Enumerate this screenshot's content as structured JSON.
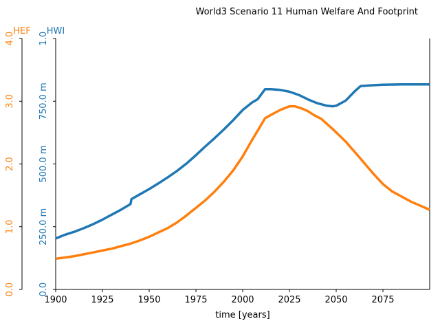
{
  "chart_data": {
    "type": "line",
    "title": "World3 Scenario 11 Human Welfare And Footprint",
    "xlabel": "time [years]",
    "xlim": [
      1900,
      2100
    ],
    "x_ticks": [
      1900,
      1925,
      1950,
      1975,
      2000,
      2025,
      2050,
      2075
    ],
    "x_tick_labels": [
      "1900",
      "1925",
      "1950",
      "1975",
      "2000",
      "2025",
      "2050",
      "2075"
    ],
    "axes": [
      {
        "id": "hef",
        "label": "HEF",
        "color": "#ff7f0e",
        "ylim": [
          0,
          4
        ],
        "ticks": [
          0,
          1,
          2,
          3,
          4
        ],
        "tick_labels": [
          "0.0",
          "1.0",
          "2.0",
          "3.0",
          "4.0"
        ]
      },
      {
        "id": "hwi",
        "label": "HWI",
        "color": "#1f77b4",
        "ylim": [
          0,
          1
        ],
        "ticks": [
          0,
          0.25,
          0.5,
          0.75,
          1
        ],
        "tick_labels": [
          "0.0",
          "250.0 m",
          "500.0 m",
          "750.0 m",
          "1.0"
        ]
      }
    ],
    "series": [
      {
        "name": "HWI",
        "axis": "hwi",
        "color": "#1f77b4",
        "x": [
          1900,
          1905,
          1910,
          1915,
          1920,
          1925,
          1930,
          1935,
          1940,
          1940.5,
          1945,
          1950,
          1955,
          1960,
          1965,
          1970,
          1975,
          1980,
          1985,
          1990,
          1995,
          2000,
          2005,
          2008,
          2012,
          2015,
          2020,
          2025,
          2030,
          2035,
          2040,
          2045,
          2048,
          2050,
          2055,
          2060,
          2063,
          2068,
          2075,
          2085,
          2100
        ],
        "y": [
          0.203,
          0.218,
          0.23,
          0.244,
          0.26,
          0.278,
          0.298,
          0.318,
          0.34,
          0.36,
          0.379,
          0.4,
          0.423,
          0.447,
          0.473,
          0.502,
          0.535,
          0.57,
          0.603,
          0.638,
          0.675,
          0.715,
          0.745,
          0.758,
          0.798,
          0.798,
          0.795,
          0.788,
          0.775,
          0.757,
          0.742,
          0.732,
          0.73,
          0.732,
          0.752,
          0.79,
          0.81,
          0.813,
          0.816,
          0.817,
          0.817
        ]
      },
      {
        "name": "HEF",
        "axis": "hef",
        "color": "#ff7f0e",
        "x": [
          1900,
          1905,
          1910,
          1915,
          1920,
          1925,
          1930,
          1935,
          1940,
          1945,
          1950,
          1955,
          1960,
          1965,
          1970,
          1975,
          1980,
          1985,
          1990,
          1995,
          2000,
          2005,
          2010,
          2012,
          2015,
          2020,
          2025,
          2028,
          2032,
          2035,
          2038,
          2042,
          2048,
          2055,
          2062,
          2070,
          2075,
          2080,
          2090,
          2100
        ],
        "y": [
          0.49,
          0.51,
          0.53,
          0.56,
          0.59,
          0.62,
          0.65,
          0.69,
          0.73,
          0.78,
          0.84,
          0.91,
          0.98,
          1.07,
          1.18,
          1.3,
          1.42,
          1.56,
          1.72,
          1.9,
          2.12,
          2.38,
          2.63,
          2.73,
          2.78,
          2.86,
          2.92,
          2.92,
          2.88,
          2.84,
          2.78,
          2.72,
          2.56,
          2.36,
          2.12,
          1.84,
          1.68,
          1.56,
          1.4,
          1.27
        ]
      }
    ],
    "grid": false,
    "legend": "none"
  }
}
